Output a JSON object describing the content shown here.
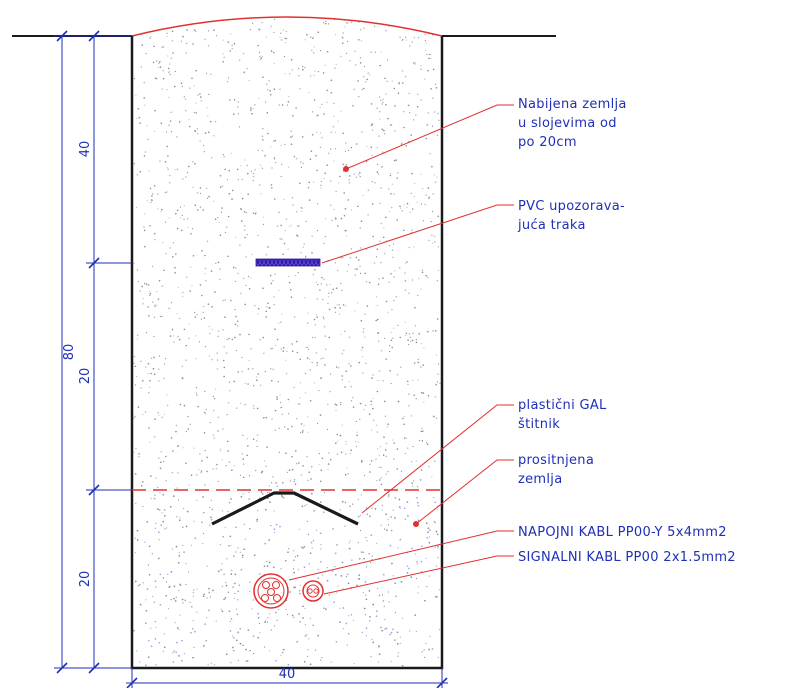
{
  "dimensions": {
    "total_depth": "80",
    "upper_layer": "40",
    "middle_layer": "20",
    "lower_layer": "20",
    "trench_width": "40"
  },
  "labels": {
    "compacted_soil": [
      "Nabijena zemlja",
      "u slojevima od",
      "po 20cm"
    ],
    "warning_tape": [
      "PVC upozorava-",
      "juća traka"
    ],
    "plastic_shield": [
      "plastični GAL",
      "štitnik"
    ],
    "sifted_soil": [
      "prositnjena",
      "zemlja"
    ],
    "power_cable": "NAPOJNI KABL PP00-Y 5x4mm2",
    "signal_cable": "SIGNALNI KABL PP00 2x1.5mm2"
  },
  "colors": {
    "ink_blue": "#1f2fb8",
    "leader_red": "#e23030",
    "outline_black": "#1a1a1a",
    "tape_blue": "#4b2fd0"
  }
}
